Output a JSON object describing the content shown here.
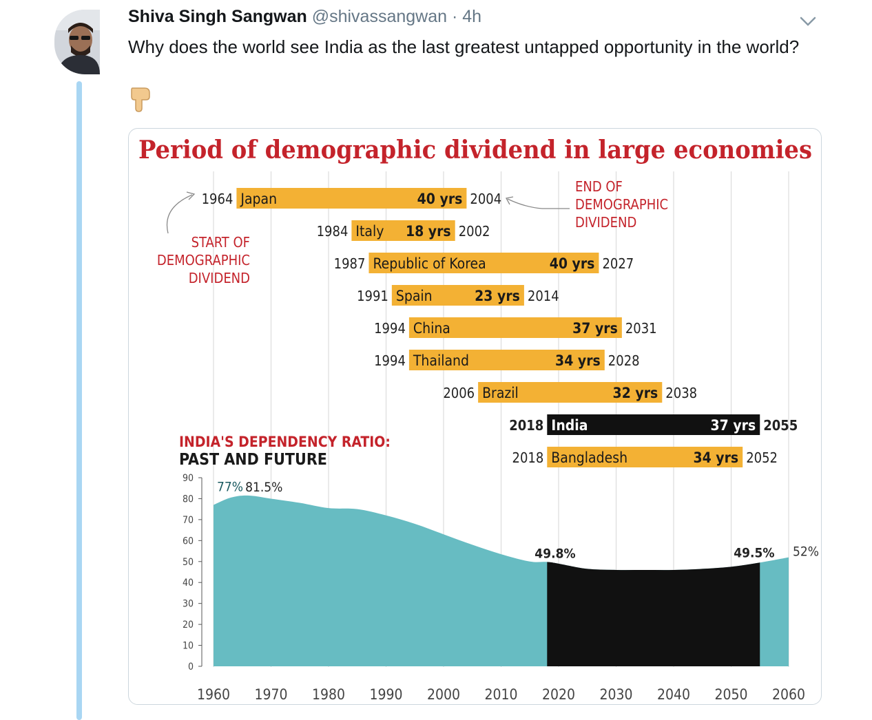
{
  "tweet": {
    "author_name": "Shiva Singh Sangwan",
    "handle": "@shivassangwan",
    "separator": "·",
    "time": "4h",
    "text": "Why does the world see India as the last greatest untapped opportunity in the world?",
    "emoji_icon": "pointing-down-hand-icon",
    "menu_icon": "chevron-down-icon"
  },
  "colors": {
    "thread_line": "#a9d6f3",
    "title_red": "#c4232b",
    "bar_orange": "#f3b134",
    "india_bar": "#111111",
    "area_teal": "#67bcc2",
    "area_black": "#111111"
  },
  "chart_data": [
    {
      "type": "bar",
      "title": "Period of demographic dividend in large economies",
      "annotations": [
        "START OF DEMOGRAPHIC DIVIDEND",
        "END OF DEMOGRAPHIC DIVIDEND"
      ],
      "series": [
        {
          "country": "Japan",
          "start": 1964,
          "end": 2004,
          "duration": "40 yrs"
        },
        {
          "country": "Italy",
          "start": 1984,
          "end": 2002,
          "duration": "18 yrs"
        },
        {
          "country": "Republic of Korea",
          "start": 1987,
          "end": 2027,
          "duration": "40 yrs"
        },
        {
          "country": "Spain",
          "start": 1991,
          "end": 2014,
          "duration": "23 yrs"
        },
        {
          "country": "China",
          "start": 1994,
          "end": 2031,
          "duration": "37 yrs"
        },
        {
          "country": "Thailand",
          "start": 1994,
          "end": 2028,
          "duration": "34 yrs"
        },
        {
          "country": "Brazil",
          "start": 2006,
          "end": 2038,
          "duration": "32 yrs"
        },
        {
          "country": "India",
          "start": 2018,
          "end": 2055,
          "duration": "37 yrs",
          "highlight": true
        },
        {
          "country": "Bangladesh",
          "start": 2018,
          "end": 2052,
          "duration": "34 yrs"
        }
      ],
      "xlim": [
        1960,
        2060
      ]
    },
    {
      "type": "area",
      "title_line1": "INDIA'S DEPENDENCY RATIO:",
      "title_line2": "PAST AND FUTURE",
      "x": [
        1960,
        1963,
        1966,
        1970,
        1975,
        1980,
        1985,
        1990,
        1995,
        2000,
        2005,
        2010,
        2015,
        2018,
        2020,
        2025,
        2030,
        2035,
        2040,
        2045,
        2050,
        2055,
        2060
      ],
      "values": [
        77,
        80.5,
        81.5,
        80,
        78,
        75.5,
        75,
        72,
        68,
        63,
        58,
        53.5,
        50,
        49.8,
        49,
        46.5,
        46,
        46,
        46,
        46.5,
        47.5,
        49.5,
        52
      ],
      "highlight_range": [
        2018,
        2055
      ],
      "labels": [
        {
          "x": 1960,
          "text": "77%"
        },
        {
          "x": 1966,
          "text": "81.5%"
        },
        {
          "x": 2018,
          "text": "49.8%"
        },
        {
          "x": 2055,
          "text": "49.5%"
        },
        {
          "x": 2060,
          "text": "52%"
        }
      ],
      "yticks": [
        0,
        10,
        20,
        30,
        40,
        50,
        60,
        70,
        80,
        90
      ],
      "xticks": [
        1960,
        1970,
        1980,
        1990,
        2000,
        2010,
        2020,
        2030,
        2040,
        2050,
        2060
      ],
      "ylim": [
        0,
        90
      ],
      "xlim": [
        1960,
        2060
      ]
    }
  ]
}
